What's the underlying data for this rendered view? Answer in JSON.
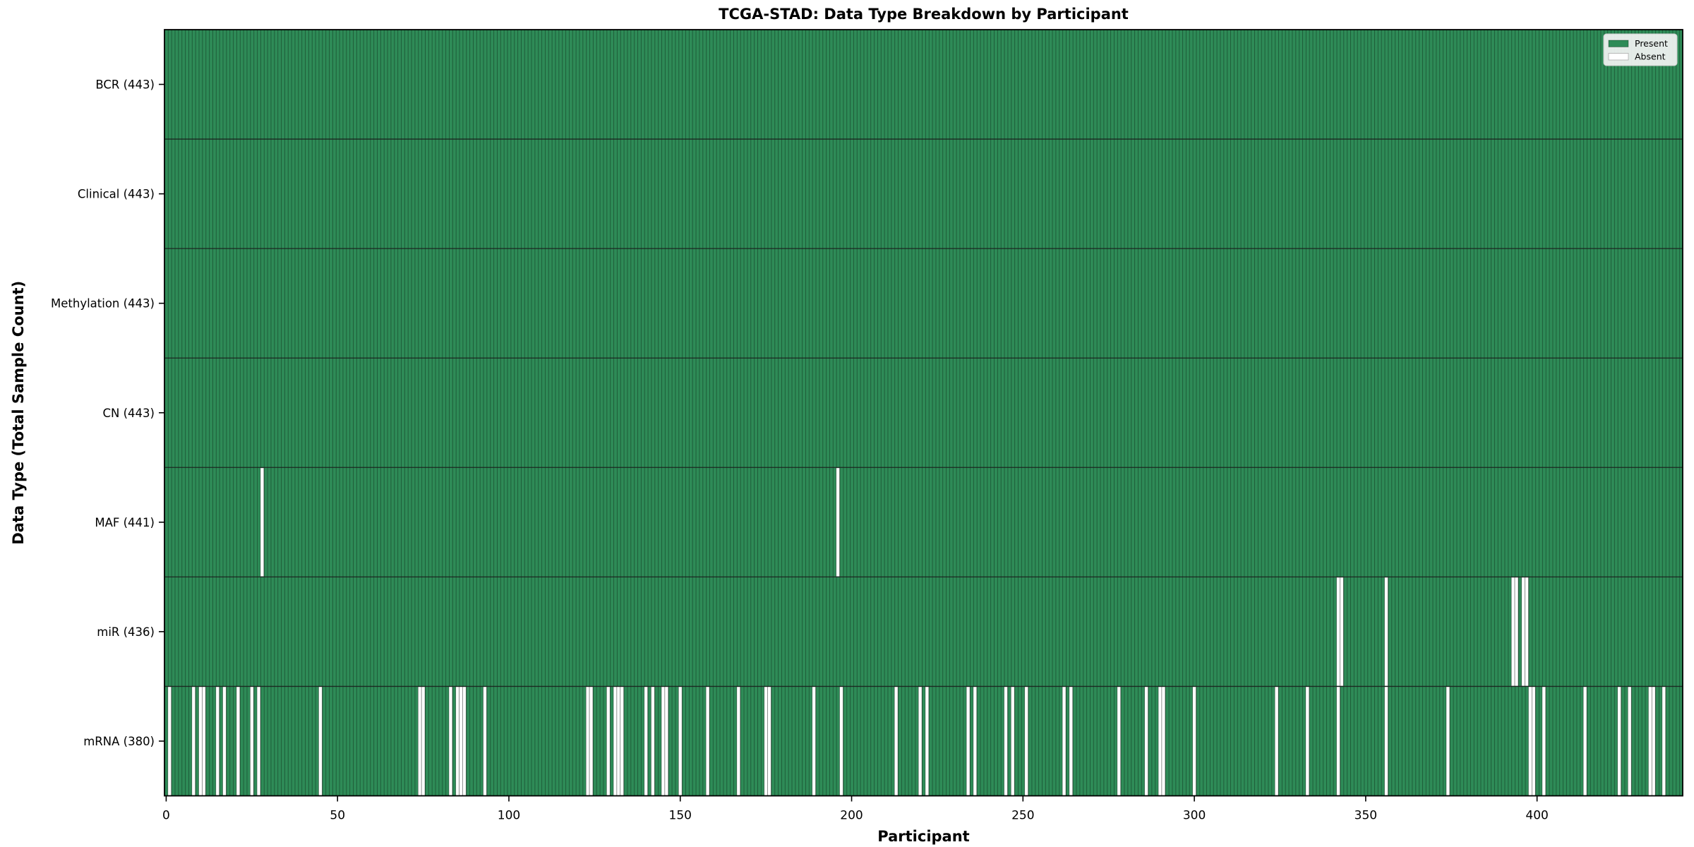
{
  "chart_data": {
    "type": "heatmap",
    "title": "TCGA-STAD: Data Type Breakdown by Participant",
    "xlabel": "Participant",
    "ylabel": "Data Type (Total Sample Count)",
    "n_participants": 443,
    "x_range": [
      -0.5,
      442.5
    ],
    "x_ticks": [
      0,
      50,
      100,
      150,
      200,
      250,
      300,
      350,
      400
    ],
    "grid": "per-column cell edges, row divider lines, solid black plot border",
    "legend_position": "upper right",
    "legend": [
      {
        "key": "present",
        "label": "Present",
        "color": "#2e8b57"
      },
      {
        "key": "absent",
        "label": "Absent",
        "color": "#ffffff"
      }
    ],
    "colors": {
      "present": "#2e8b57",
      "absent": "#ffffff",
      "cell_edge": "rgba(15,45,28,0.55)",
      "row_divider": "#1a1a1a",
      "plot_border": "#000000",
      "figure_bg": "#ffffff",
      "legend_bg": "#f4f4f4",
      "legend_border": "#cccccc",
      "text": "#000000"
    },
    "rows": [
      {
        "key": "bcr",
        "label": "BCR (443)",
        "total": 443,
        "absent": []
      },
      {
        "key": "clinical",
        "label": "Clinical (443)",
        "total": 443,
        "absent": []
      },
      {
        "key": "methylation",
        "label": "Methylation (443)",
        "total": 443,
        "absent": []
      },
      {
        "key": "cn",
        "label": "CN (443)",
        "total": 443,
        "absent": []
      },
      {
        "key": "maf",
        "label": "MAF (441)",
        "total": 441,
        "absent": [
          28,
          196
        ]
      },
      {
        "key": "mir",
        "label": "miR (436)",
        "total": 436,
        "absent": [
          342,
          343,
          356,
          393,
          394,
          396,
          397
        ]
      },
      {
        "key": "mrna",
        "label": "mRNA (380)",
        "total": 380,
        "absent": [
          1,
          8,
          10,
          11,
          15,
          17,
          21,
          25,
          27,
          45,
          74,
          75,
          83,
          85,
          86,
          87,
          93,
          123,
          124,
          129,
          131,
          132,
          133,
          140,
          142,
          145,
          146,
          150,
          158,
          167,
          175,
          176,
          189,
          197,
          213,
          220,
          222,
          234,
          236,
          245,
          247,
          251,
          262,
          264,
          278,
          286,
          290,
          291,
          300,
          324,
          333,
          342,
          356,
          374,
          398,
          399,
          402,
          414,
          424,
          427,
          433,
          434,
          437
        ]
      }
    ]
  }
}
